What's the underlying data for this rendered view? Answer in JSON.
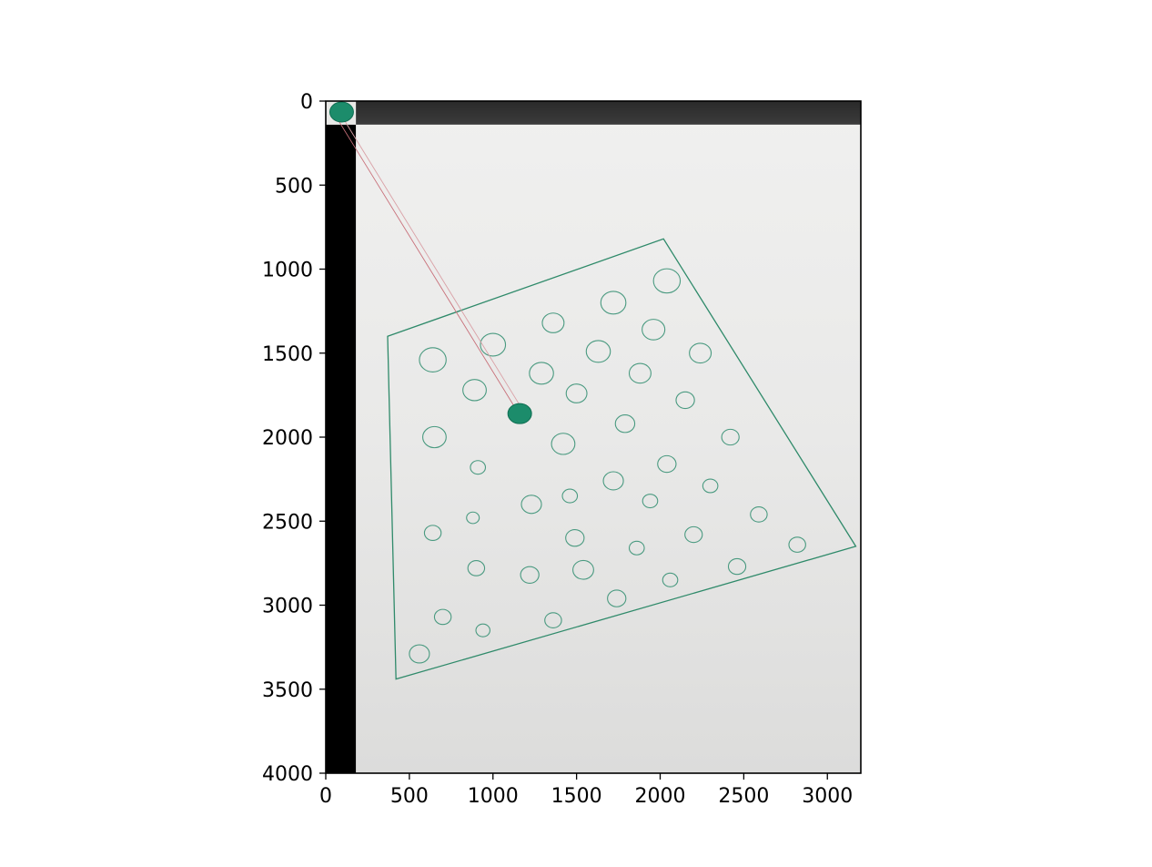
{
  "chart_data": {
    "type": "scatter",
    "title": "",
    "xlabel": "",
    "ylabel": "",
    "xlim": [
      0,
      3200
    ],
    "ylim": [
      4000,
      0
    ],
    "xticks": [
      0,
      500,
      1000,
      1500,
      2000,
      2500,
      3000
    ],
    "yticks": [
      0,
      500,
      1000,
      1500,
      2000,
      2500,
      3000,
      3500,
      4000
    ],
    "grid": false,
    "legend": "none",
    "image_description": "photo of white paper on dark table with hand-drawn green quadrilateral containing circles",
    "template_patch": {
      "x0": 0,
      "x1": 180,
      "y0": 0,
      "y1": 140
    },
    "black_strip": {
      "x0": 0,
      "x1": 180,
      "y0": 140,
      "y1": 4000
    },
    "quadrilateral": [
      [
        370,
        1400
      ],
      [
        2020,
        820
      ],
      [
        3170,
        2650
      ],
      [
        420,
        3440
      ]
    ],
    "match_lines": [
      {
        "from": [
          60,
          90
        ],
        "to": [
          1160,
          1870
        ],
        "color": "#c8707a"
      },
      {
        "from": [
          90,
          80
        ],
        "to": [
          1185,
          1850
        ],
        "color": "#d9a0a6"
      }
    ],
    "markers": [
      {
        "name": "template-dot",
        "x": 95,
        "y": 65,
        "color": "#1c8c6b"
      },
      {
        "name": "matched-dot",
        "x": 1160,
        "y": 1860,
        "color": "#1c8c6b"
      }
    ],
    "circles": [
      [
        640,
        1540,
        80
      ],
      [
        1000,
        1450,
        75
      ],
      [
        1360,
        1320,
        65
      ],
      [
        1720,
        1200,
        75
      ],
      [
        2040,
        1070,
        80
      ],
      [
        890,
        1720,
        70
      ],
      [
        1290,
        1620,
        72
      ],
      [
        1630,
        1490,
        72
      ],
      [
        1960,
        1360,
        68
      ],
      [
        2240,
        1500,
        65
      ],
      [
        650,
        2000,
        70
      ],
      [
        1500,
        1740,
        62
      ],
      [
        1880,
        1620,
        65
      ],
      [
        2150,
        1780,
        55
      ],
      [
        910,
        2180,
        45
      ],
      [
        1420,
        2040,
        70
      ],
      [
        1790,
        1920,
        58
      ],
      [
        2420,
        2000,
        52
      ],
      [
        2040,
        2160,
        55
      ],
      [
        1720,
        2260,
        60
      ],
      [
        1230,
        2400,
        60
      ],
      [
        1460,
        2350,
        45
      ],
      [
        880,
        2480,
        38
      ],
      [
        640,
        2570,
        50
      ],
      [
        1940,
        2380,
        45
      ],
      [
        2300,
        2290,
        45
      ],
      [
        2590,
        2460,
        50
      ],
      [
        1490,
        2600,
        55
      ],
      [
        1860,
        2660,
        45
      ],
      [
        2200,
        2580,
        52
      ],
      [
        2820,
        2640,
        50
      ],
      [
        900,
        2780,
        50
      ],
      [
        1220,
        2820,
        55
      ],
      [
        1540,
        2790,
        62
      ],
      [
        2060,
        2850,
        45
      ],
      [
        2460,
        2770,
        52
      ],
      [
        700,
        3070,
        50
      ],
      [
        940,
        3150,
        42
      ],
      [
        1360,
        3090,
        50
      ],
      [
        1740,
        2960,
        55
      ],
      [
        560,
        3290,
        60
      ]
    ]
  }
}
